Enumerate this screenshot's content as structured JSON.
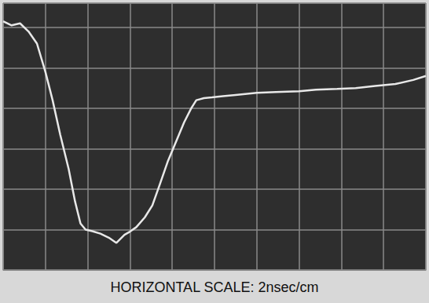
{
  "chart_data": {
    "type": "line",
    "title": "HORIZONTAL SCALE: 2nsec/cm",
    "x": [
      0,
      0.2,
      0.4,
      0.6,
      0.8,
      1.0,
      1.17,
      1.35,
      1.55,
      1.7,
      1.83,
      1.95,
      2.11,
      2.3,
      2.5,
      2.68,
      2.87,
      3.0,
      3.15,
      3.35,
      3.53,
      3.7,
      3.9,
      4.1,
      4.28,
      4.45,
      4.57,
      4.75,
      4.94,
      5.2,
      5.5,
      6.0,
      6.45,
      7.0,
      7.4,
      7.9,
      8.34,
      8.8,
      9.28,
      9.7,
      10.0
    ],
    "values": [
      6.15,
      6.05,
      6.1,
      5.9,
      5.6,
      4.9,
      4.2,
      3.35,
      2.5,
      1.7,
      1.15,
      1.0,
      0.96,
      0.9,
      0.8,
      0.67,
      0.87,
      0.95,
      1.06,
      1.3,
      1.6,
      2.1,
      2.7,
      3.2,
      3.65,
      4.0,
      4.2,
      4.25,
      4.27,
      4.3,
      4.33,
      4.38,
      4.4,
      4.42,
      4.46,
      4.48,
      4.5,
      4.55,
      4.6,
      4.7,
      4.8
    ],
    "color": "#e8e8e8",
    "xlim": [
      0,
      10
    ],
    "xticks": [
      0,
      1,
      2,
      3,
      4,
      5,
      6,
      7,
      8,
      9,
      10
    ],
    "ylim": [
      0,
      6.6
    ],
    "yticks": [
      0,
      1,
      2,
      3,
      4,
      5,
      6
    ],
    "grid": true,
    "tick_labels": false
  }
}
